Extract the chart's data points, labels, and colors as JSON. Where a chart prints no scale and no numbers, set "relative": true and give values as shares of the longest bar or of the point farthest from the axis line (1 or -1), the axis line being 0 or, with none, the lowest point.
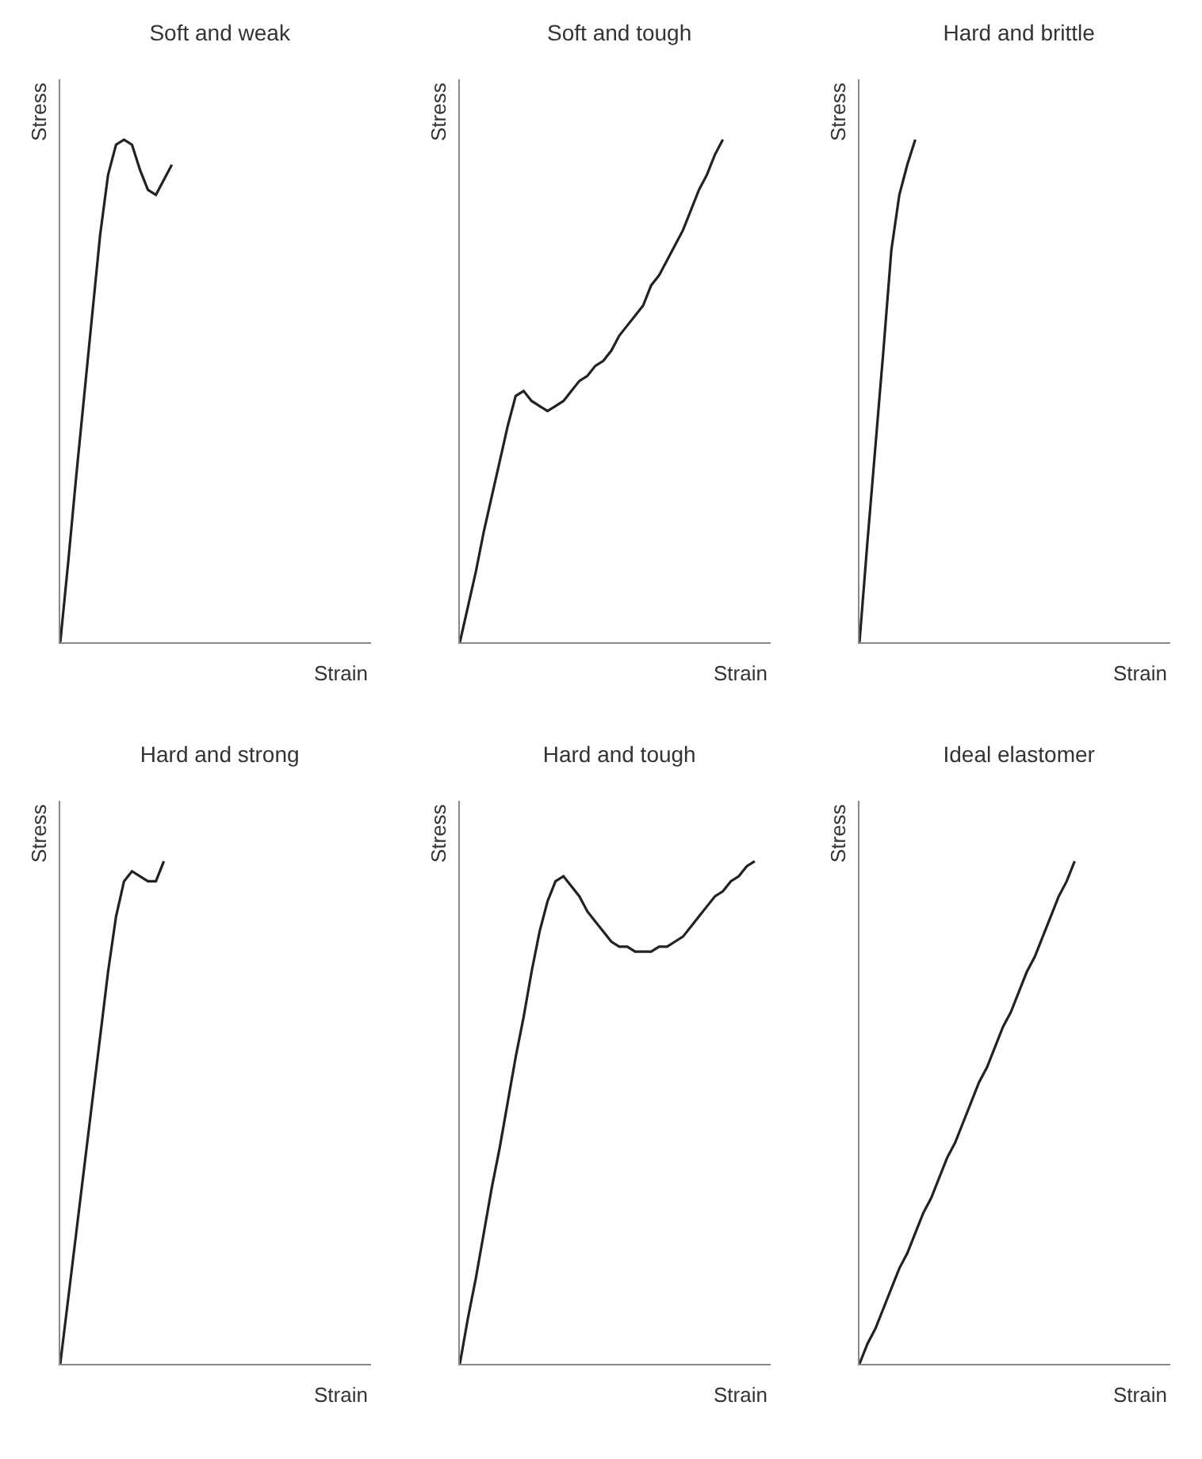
{
  "chart_data": [
    {
      "type": "line",
      "title": "Soft and weak",
      "xlabel": "Strain",
      "ylabel": "Stress",
      "relative": true,
      "categories": [
        null,
        null,
        null,
        null,
        null,
        null,
        null,
        null,
        null,
        null,
        null,
        null,
        null,
        null,
        null,
        null,
        null,
        null,
        null,
        null,
        null,
        null,
        null,
        null,
        null,
        null,
        null,
        null,
        null,
        null,
        null,
        null,
        null,
        null,
        null,
        null,
        null,
        null,
        null,
        null
      ],
      "series": [
        {
          "color": "#222222",
          "values": [
            0,
            0.16,
            0.33,
            0.49,
            0.65,
            0.81,
            0.93,
            0.99,
            1.0,
            0.99,
            0.94,
            0.9,
            0.89,
            0.92,
            0.95,
            null,
            null,
            null,
            null,
            null,
            null,
            null,
            null,
            null,
            null,
            null,
            null,
            null,
            null,
            null,
            null,
            null,
            null,
            null,
            null,
            null,
            null,
            null,
            null,
            null
          ]
        }
      ]
    },
    {
      "type": "line",
      "title": "Soft and tough",
      "xlabel": "Strain",
      "ylabel": "Stress",
      "relative": true,
      "categories": [
        null,
        null,
        null,
        null,
        null,
        null,
        null,
        null,
        null,
        null,
        null,
        null,
        null,
        null,
        null,
        null,
        null,
        null,
        null,
        null,
        null,
        null,
        null,
        null,
        null,
        null,
        null,
        null,
        null,
        null,
        null,
        null,
        null,
        null,
        null,
        null,
        null,
        null,
        null,
        null
      ],
      "series": [
        {
          "color": "#222222",
          "values": [
            0,
            0.07,
            0.14,
            0.22,
            0.29,
            0.36,
            0.43,
            0.49,
            0.5,
            0.48,
            0.47,
            0.46,
            0.47,
            0.48,
            0.5,
            0.52,
            0.53,
            0.55,
            0.56,
            0.58,
            0.61,
            0.63,
            0.65,
            0.67,
            0.71,
            0.73,
            0.76,
            0.79,
            0.82,
            0.86,
            0.9,
            0.93,
            0.97,
            1.0,
            null,
            null,
            null,
            null,
            null,
            null
          ]
        }
      ]
    },
    {
      "type": "line",
      "title": "Hard and brittle",
      "xlabel": "Strain",
      "ylabel": "Stress",
      "relative": true,
      "categories": [
        null,
        null,
        null,
        null,
        null,
        null,
        null,
        null,
        null,
        null,
        null,
        null,
        null,
        null,
        null,
        null,
        null,
        null,
        null,
        null,
        null,
        null,
        null,
        null,
        null,
        null,
        null,
        null,
        null,
        null,
        null,
        null,
        null,
        null,
        null,
        null,
        null,
        null,
        null,
        null
      ],
      "series": [
        {
          "color": "#222222",
          "values": [
            0,
            0.2,
            0.39,
            0.58,
            0.78,
            0.89,
            0.95,
            1.0,
            null,
            null,
            null,
            null,
            null,
            null,
            null,
            null,
            null,
            null,
            null,
            null,
            null,
            null,
            null,
            null,
            null,
            null,
            null,
            null,
            null,
            null,
            null,
            null,
            null,
            null,
            null,
            null,
            null,
            null,
            null,
            null
          ]
        }
      ]
    },
    {
      "type": "line",
      "title": "Hard and strong",
      "xlabel": "Strain",
      "ylabel": "Stress",
      "relative": true,
      "categories": [
        null,
        null,
        null,
        null,
        null,
        null,
        null,
        null,
        null,
        null,
        null,
        null,
        null,
        null,
        null,
        null,
        null,
        null,
        null,
        null,
        null,
        null,
        null,
        null,
        null,
        null,
        null,
        null,
        null,
        null,
        null,
        null,
        null,
        null,
        null,
        null,
        null,
        null,
        null,
        null
      ],
      "series": [
        {
          "color": "#222222",
          "values": [
            0,
            0.13,
            0.26,
            0.39,
            0.52,
            0.65,
            0.78,
            0.89,
            0.96,
            0.98,
            0.97,
            0.96,
            0.96,
            1.0,
            null,
            null,
            null,
            null,
            null,
            null,
            null,
            null,
            null,
            null,
            null,
            null,
            null,
            null,
            null,
            null,
            null,
            null,
            null,
            null,
            null,
            null,
            null,
            null,
            null,
            null
          ]
        }
      ]
    },
    {
      "type": "line",
      "title": "Hard and tough",
      "xlabel": "Strain",
      "ylabel": "Stress",
      "relative": true,
      "categories": [
        null,
        null,
        null,
        null,
        null,
        null,
        null,
        null,
        null,
        null,
        null,
        null,
        null,
        null,
        null,
        null,
        null,
        null,
        null,
        null,
        null,
        null,
        null,
        null,
        null,
        null,
        null,
        null,
        null,
        null,
        null,
        null,
        null,
        null,
        null,
        null,
        null,
        null,
        null,
        null
      ],
      "series": [
        {
          "color": "#222222",
          "values": [
            0,
            0.09,
            0.17,
            0.26,
            0.35,
            0.43,
            0.52,
            0.61,
            0.69,
            0.78,
            0.86,
            0.92,
            0.96,
            0.97,
            0.95,
            0.93,
            0.9,
            0.88,
            0.86,
            0.84,
            0.83,
            0.83,
            0.82,
            0.82,
            0.82,
            0.83,
            0.83,
            0.84,
            0.85,
            0.87,
            0.89,
            0.91,
            0.93,
            0.94,
            0.96,
            0.97,
            0.99,
            1.0,
            null,
            null
          ]
        }
      ]
    },
    {
      "type": "line",
      "title": "Ideal elastomer",
      "xlabel": "Strain",
      "ylabel": "Stress",
      "relative": true,
      "categories": [
        null,
        null,
        null,
        null,
        null,
        null,
        null,
        null,
        null,
        null,
        null,
        null,
        null,
        null,
        null,
        null,
        null,
        null,
        null,
        null,
        null,
        null,
        null,
        null,
        null,
        null,
        null,
        null,
        null,
        null,
        null,
        null,
        null,
        null,
        null,
        null,
        null,
        null,
        null,
        null
      ],
      "series": [
        {
          "color": "#222222",
          "values": [
            0,
            0.04,
            0.07,
            0.11,
            0.15,
            0.19,
            0.22,
            0.26,
            0.3,
            0.33,
            0.37,
            0.41,
            0.44,
            0.48,
            0.52,
            0.56,
            0.59,
            0.63,
            0.67,
            0.7,
            0.74,
            0.78,
            0.81,
            0.85,
            0.89,
            0.93,
            0.96,
            1.0,
            null,
            null,
            null,
            null,
            null,
            null,
            null,
            null,
            null,
            null,
            null,
            null
          ]
        }
      ]
    }
  ]
}
